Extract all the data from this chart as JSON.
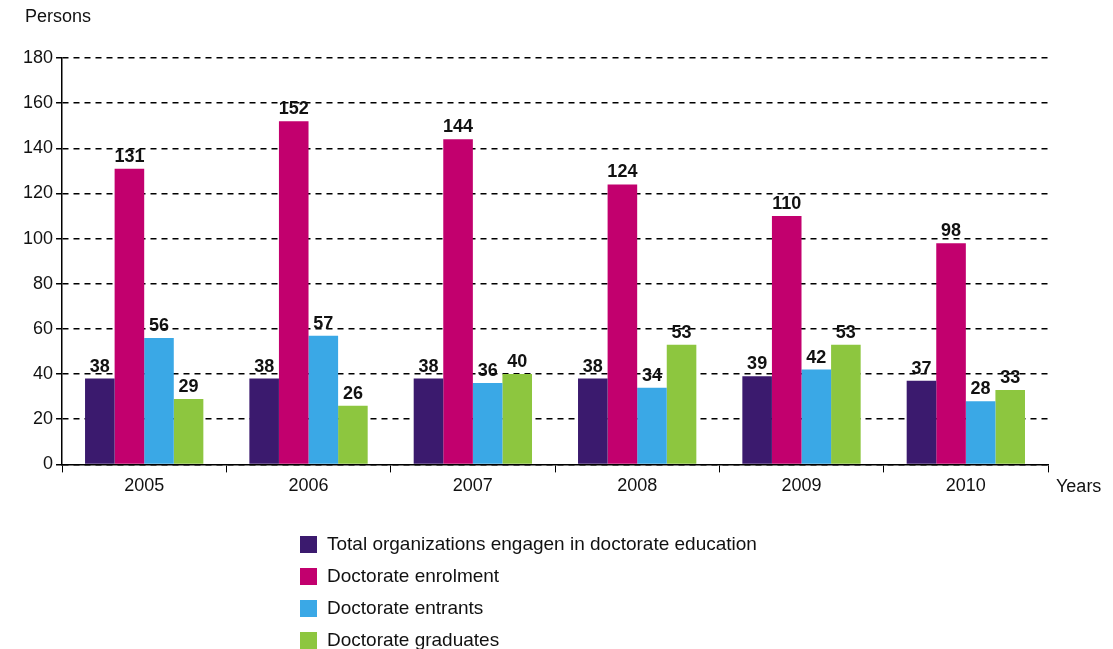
{
  "chart_data": {
    "type": "bar",
    "ylabel": "Persons",
    "xlabel": "Years",
    "categories": [
      "2005",
      "2006",
      "2007",
      "2008",
      "2009",
      "2010"
    ],
    "series": [
      {
        "name": "Total organizations engagen in doctorate education",
        "color": "#3b1a6e",
        "values": [
          38,
          38,
          38,
          38,
          39,
          37
        ]
      },
      {
        "name": "Doctorate enrolment",
        "color": "#c2006e",
        "values": [
          131,
          152,
          144,
          124,
          110,
          98
        ]
      },
      {
        "name": "Doctorate entrants",
        "color": "#3aa8e6",
        "values": [
          56,
          57,
          36,
          34,
          42,
          28
        ]
      },
      {
        "name": "Doctorate graduates",
        "color": "#8dc63f",
        "values": [
          29,
          26,
          40,
          53,
          53,
          33
        ]
      }
    ],
    "ylim": [
      0,
      180
    ],
    "yticks": [
      0,
      20,
      40,
      60,
      80,
      100,
      120,
      140,
      160,
      180
    ],
    "grid": "y",
    "legend": "bottom",
    "data_labels": true
  }
}
